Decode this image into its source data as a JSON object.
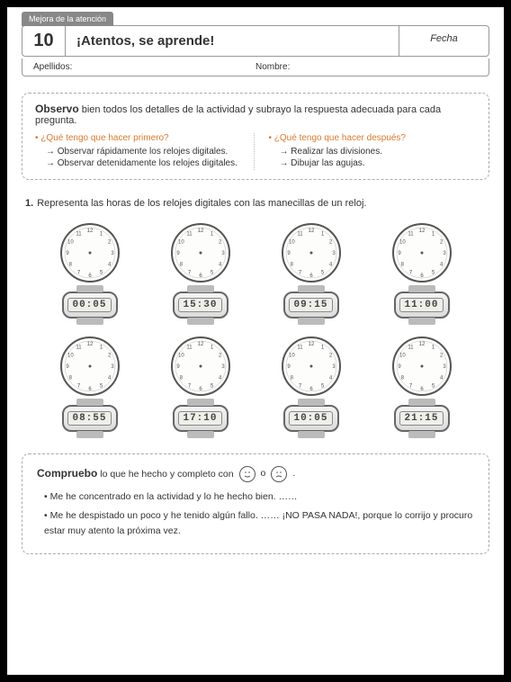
{
  "header": {
    "tab": "Mejora de la atención",
    "number": "10",
    "title": "¡Atentos, se aprende!",
    "fecha_label": "Fecha",
    "apellidos_label": "Apellidos:",
    "nombre_label": "Nombre:"
  },
  "observo": {
    "lead_bold": "Observo",
    "lead_rest": " bien todos los detalles de la actividad y subrayo la respuesta adecuada para cada pregunta.",
    "left": {
      "question": "¿Qué tengo que hacer primero?",
      "answers": [
        "Observar rápidamente los relojes digitales.",
        "Observar detenidamente los relojes digitales."
      ]
    },
    "right": {
      "question": "¿Qué tengo que hacer después?",
      "answers": [
        "Realizar las divisiones.",
        "Dibujar las agujas."
      ]
    }
  },
  "exercise": {
    "num": "1.",
    "text": "Representa las horas de los relojes digitales con las manecillas de un reloj."
  },
  "clocks": [
    {
      "time": "00:05"
    },
    {
      "time": "15:30"
    },
    {
      "time": "09:15"
    },
    {
      "time": "11:00"
    },
    {
      "time": "08:55"
    },
    {
      "time": "17:10"
    },
    {
      "time": "10:05"
    },
    {
      "time": "21:15"
    }
  ],
  "compruebo": {
    "lead_bold": "Compruebo",
    "lead_rest": " lo que he hecho y completo con",
    "lead_or": "o",
    "lead_end": ".",
    "line1": "Me he concentrado en la actividad y lo he hecho bien. ……",
    "line2": "Me he despistado un poco y he tenido algún fallo. …… ¡NO PASA NADA!, porque lo corrijo y procuro estar muy atento la próxima vez."
  },
  "style": {
    "accent_color": "#d97a2e",
    "clock_face_stroke": "#555",
    "clock_face_fill": "#fdfdfb"
  }
}
